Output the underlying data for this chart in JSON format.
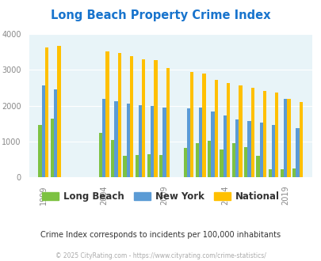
{
  "title": "Long Beach Property Crime Index",
  "title_color": "#1874CD",
  "subtitle": "Crime Index corresponds to incidents per 100,000 inhabitants",
  "footer": "© 2025 CityRating.com - https://www.cityrating.com/crime-statistics/",
  "years": [
    1999,
    2000,
    2004,
    2005,
    2006,
    2007,
    2008,
    2009,
    2011,
    2012,
    2013,
    2014,
    2015,
    2016,
    2017,
    2018,
    2019,
    2020
  ],
  "long_beach": [
    1470,
    1650,
    1240,
    1040,
    600,
    625,
    650,
    630,
    830,
    960,
    1020,
    775,
    950,
    840,
    610,
    240,
    240,
    245
  ],
  "new_york": [
    2570,
    2450,
    2200,
    2120,
    2060,
    2010,
    2000,
    1950,
    1930,
    1940,
    1840,
    1720,
    1620,
    1570,
    1540,
    1460,
    2180,
    1370
  ],
  "national": [
    3620,
    3660,
    3510,
    3460,
    3370,
    3300,
    3260,
    3050,
    2930,
    2900,
    2730,
    2630,
    2560,
    2490,
    2420,
    2360,
    2200,
    2100
  ],
  "long_beach_color": "#7DC242",
  "new_york_color": "#5B9BD5",
  "national_color": "#FFC000",
  "bg_color": "#FFFFFF",
  "plot_bg_color": "#E8F4F8",
  "ylim": [
    0,
    4000
  ],
  "yticks": [
    0,
    1000,
    2000,
    3000,
    4000
  ],
  "xtick_positions": [
    1999,
    2004,
    2009,
    2014,
    2019
  ],
  "xtick_labels": [
    "1999",
    "2004",
    "2009",
    "2014",
    "2019"
  ],
  "grid_color": "#FFFFFF",
  "legend_labels": [
    "Long Beach",
    "New York",
    "National"
  ],
  "legend_label_colors": [
    "#333333",
    "#333333",
    "#333333"
  ]
}
